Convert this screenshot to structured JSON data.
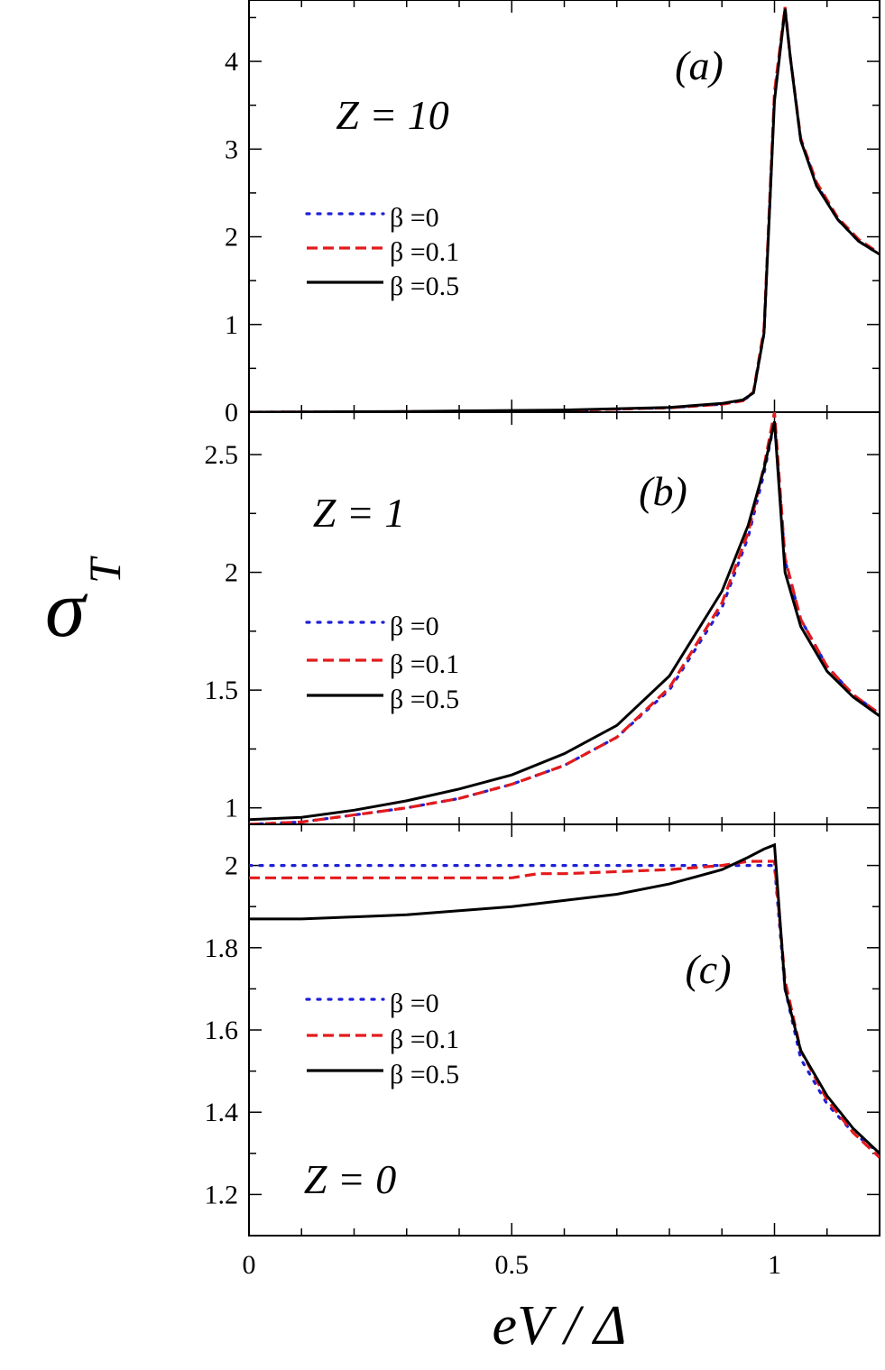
{
  "figure": {
    "ylabel": "σ",
    "ylabel_subscript": "T",
    "xlabel": "eV / Δ"
  },
  "chart_data": [
    {
      "type": "line",
      "panel_label": "(a)",
      "annotation": "Z = 10",
      "xlim": [
        0,
        1.2
      ],
      "ylim": [
        0,
        4.7
      ],
      "x_ticks": [
        0,
        0.5,
        1
      ],
      "y_ticks": [
        0,
        1,
        2,
        3,
        4
      ],
      "y_tick_labels": [
        "0",
        "1",
        "2",
        "3",
        "4"
      ],
      "legend_position": "middle-left",
      "series": [
        {
          "name": "β =0",
          "color": "#1f1fd6",
          "style": "dotted",
          "x": [
            0,
            0.3,
            0.6,
            0.8,
            0.9,
            0.94,
            0.96,
            0.98,
            1.0,
            1.02,
            1.03,
            1.05,
            1.08,
            1.12,
            1.16,
            1.2
          ],
          "y": [
            0.0,
            0.005,
            0.02,
            0.05,
            0.09,
            0.13,
            0.22,
            0.9,
            3.6,
            4.6,
            4.05,
            3.1,
            2.6,
            2.2,
            1.95,
            1.8
          ]
        },
        {
          "name": "β =0.1",
          "color": "#e31a1c",
          "style": "dashed",
          "x": [
            0,
            0.3,
            0.6,
            0.8,
            0.9,
            0.94,
            0.96,
            0.98,
            1.0,
            1.02,
            1.03,
            1.05,
            1.08,
            1.12,
            1.16,
            1.2
          ],
          "y": [
            0.0,
            0.005,
            0.02,
            0.05,
            0.09,
            0.13,
            0.23,
            0.95,
            3.65,
            4.62,
            4.05,
            3.12,
            2.62,
            2.22,
            1.97,
            1.81
          ]
        },
        {
          "name": "β =0.5",
          "color": "#000000",
          "style": "solid",
          "x": [
            0,
            0.3,
            0.6,
            0.8,
            0.9,
            0.94,
            0.96,
            0.98,
            1.0,
            1.02,
            1.03,
            1.05,
            1.08,
            1.12,
            1.16,
            1.2
          ],
          "y": [
            0.0,
            0.008,
            0.025,
            0.055,
            0.1,
            0.14,
            0.22,
            0.9,
            3.55,
            4.6,
            4.05,
            3.1,
            2.58,
            2.2,
            1.95,
            1.8
          ]
        }
      ]
    },
    {
      "type": "line",
      "panel_label": "(b)",
      "annotation": "Z = 1",
      "xlim": [
        0,
        1.2
      ],
      "ylim": [
        0.93,
        2.68
      ],
      "x_ticks": [
        0,
        0.5,
        1
      ],
      "y_ticks": [
        1,
        1.5,
        2,
        2.5
      ],
      "y_tick_labels": [
        "1",
        "1.5",
        "2",
        "2.5"
      ],
      "legend_position": "middle-left",
      "series": [
        {
          "name": "β =0",
          "color": "#1f1fd6",
          "style": "dotted",
          "x": [
            0,
            0.1,
            0.2,
            0.3,
            0.4,
            0.5,
            0.6,
            0.7,
            0.8,
            0.9,
            0.95,
            0.98,
            1.0,
            1.02,
            1.05,
            1.1,
            1.15,
            1.2
          ],
          "y": [
            0.93,
            0.94,
            0.97,
            1.0,
            1.04,
            1.1,
            1.18,
            1.3,
            1.5,
            1.85,
            2.15,
            2.42,
            2.64,
            2.05,
            1.8,
            1.6,
            1.48,
            1.4
          ]
        },
        {
          "name": "β =0.1",
          "color": "#e31a1c",
          "style": "dashed",
          "x": [
            0,
            0.1,
            0.2,
            0.3,
            0.4,
            0.5,
            0.6,
            0.7,
            0.8,
            0.9,
            0.95,
            0.98,
            1.0,
            1.02,
            1.05,
            1.1,
            1.15,
            1.2
          ],
          "y": [
            0.93,
            0.94,
            0.97,
            1.0,
            1.04,
            1.1,
            1.18,
            1.3,
            1.51,
            1.87,
            2.17,
            2.45,
            2.68,
            2.06,
            1.8,
            1.6,
            1.48,
            1.4
          ]
        },
        {
          "name": "β =0.5",
          "color": "#000000",
          "style": "solid",
          "x": [
            0,
            0.1,
            0.2,
            0.3,
            0.4,
            0.5,
            0.6,
            0.7,
            0.8,
            0.9,
            0.95,
            0.98,
            1.0,
            1.02,
            1.05,
            1.1,
            1.15,
            1.2
          ],
          "y": [
            0.95,
            0.96,
            0.99,
            1.03,
            1.08,
            1.14,
            1.23,
            1.35,
            1.56,
            1.92,
            2.2,
            2.44,
            2.64,
            2.0,
            1.77,
            1.58,
            1.47,
            1.39
          ]
        }
      ]
    },
    {
      "type": "line",
      "panel_label": "(c)",
      "annotation": "Z = 0",
      "xlim": [
        0,
        1.2
      ],
      "ylim": [
        1.1,
        2.1
      ],
      "x_ticks": [
        0,
        0.5,
        1
      ],
      "x_tick_labels": [
        "0",
        "0.5",
        "1"
      ],
      "y_ticks": [
        1.2,
        1.4,
        1.6,
        1.8,
        2
      ],
      "y_tick_labels": [
        "1.2",
        "1.4",
        "1.6",
        "1.8",
        "2"
      ],
      "legend_position": "middle-left",
      "series": [
        {
          "name": "β =0",
          "color": "#1f1fd6",
          "style": "dotted",
          "x": [
            0,
            0.2,
            0.4,
            0.6,
            0.8,
            0.9,
            0.95,
            0.99,
            1.0,
            1.02,
            1.05,
            1.1,
            1.15,
            1.2
          ],
          "y": [
            2.0,
            2.0,
            2.0,
            2.0,
            2.0,
            2.0,
            2.0,
            2.0,
            2.0,
            1.7,
            1.53,
            1.42,
            1.35,
            1.3
          ]
        },
        {
          "name": "β =0.1",
          "color": "#e31a1c",
          "style": "dashed",
          "x": [
            0,
            0.2,
            0.4,
            0.5,
            0.55,
            0.6,
            0.8,
            0.9,
            0.95,
            0.99,
            1.0,
            1.02,
            1.05,
            1.1,
            1.15,
            1.2
          ],
          "y": [
            1.97,
            1.97,
            1.97,
            1.97,
            1.98,
            1.98,
            1.99,
            2.0,
            2.01,
            2.01,
            2.01,
            1.72,
            1.55,
            1.43,
            1.35,
            1.29
          ]
        },
        {
          "name": "β =0.5",
          "color": "#000000",
          "style": "solid",
          "x": [
            0,
            0.1,
            0.2,
            0.3,
            0.4,
            0.5,
            0.6,
            0.7,
            0.8,
            0.9,
            0.95,
            0.98,
            1.0,
            1.02,
            1.05,
            1.1,
            1.15,
            1.2
          ],
          "y": [
            1.87,
            1.87,
            1.875,
            1.88,
            1.89,
            1.9,
            1.915,
            1.93,
            1.955,
            1.99,
            2.02,
            2.04,
            2.05,
            1.7,
            1.55,
            1.44,
            1.36,
            1.3
          ]
        }
      ]
    }
  ]
}
